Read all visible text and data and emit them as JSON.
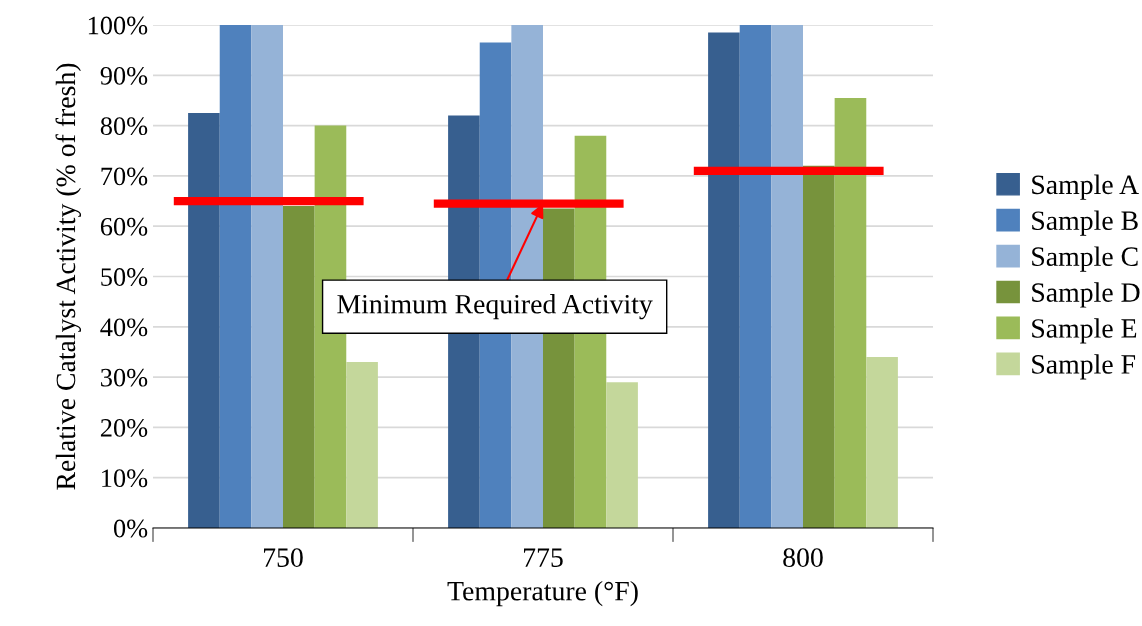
{
  "chart_data": {
    "type": "bar",
    "xlabel": "Temperature (°F)",
    "ylabel": "Relative Catalyst Activity (% of fresh)",
    "categories": [
      "750",
      "775",
      "800"
    ],
    "series": [
      {
        "name": "Sample A",
        "color": "#375f8f",
        "values": [
          82.5,
          82,
          98.5
        ]
      },
      {
        "name": "Sample B",
        "color": "#4f81bd",
        "values": [
          100,
          96.5,
          100
        ]
      },
      {
        "name": "Sample C",
        "color": "#95b3d7",
        "values": [
          100,
          100,
          100
        ]
      },
      {
        "name": "Sample D",
        "color": "#77933c",
        "values": [
          64,
          63.5,
          72
        ]
      },
      {
        "name": "Sample E",
        "color": "#9bbb59",
        "values": [
          80,
          78,
          85.5
        ]
      },
      {
        "name": "Sample F",
        "color": "#c4d79b",
        "values": [
          33,
          29,
          34
        ]
      }
    ],
    "ref_lines": [
      {
        "axis": "y",
        "value": 65,
        "color": "#ff0000"
      },
      {
        "axis": "y",
        "value": 64.5,
        "color": "#ff0000"
      },
      {
        "axis": "y",
        "value": 71,
        "color": "#ff0000"
      }
    ],
    "ylim": [
      0,
      100
    ],
    "yticks": [
      {
        "value": 0,
        "label": "0%"
      },
      {
        "value": 10,
        "label": "10%"
      },
      {
        "value": 20,
        "label": "20%"
      },
      {
        "value": 30,
        "label": "30%"
      },
      {
        "value": 40,
        "label": "40%"
      },
      {
        "value": 50,
        "label": "50%"
      },
      {
        "value": 60,
        "label": "60%"
      },
      {
        "value": 70,
        "label": "70%"
      },
      {
        "value": 80,
        "label": "80%"
      },
      {
        "value": 90,
        "label": "90%"
      },
      {
        "value": 100,
        "label": "100%"
      }
    ],
    "grid": "y",
    "legend": "right",
    "annotations": [
      {
        "text": "Minimum Required Activity",
        "x": "775",
        "y": 64.5
      }
    ]
  }
}
